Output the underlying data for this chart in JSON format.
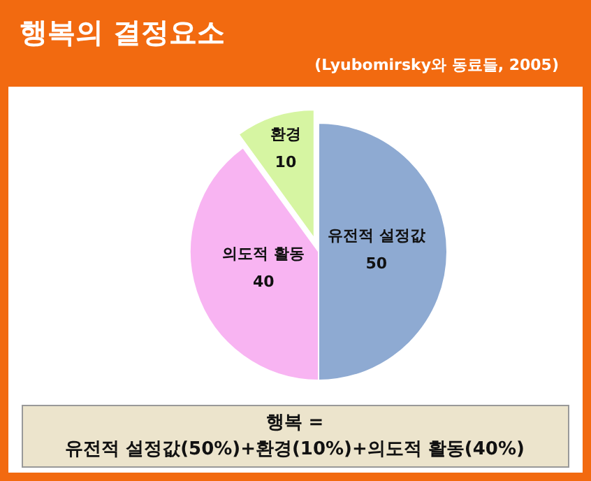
{
  "chart_data": {
    "type": "pie",
    "title": "행복의 결정요소",
    "subtitle": "(Lyubomirsky와 동료들, 2005)",
    "categories": [
      "유전적 설정값",
      "의도적 활동",
      "환경"
    ],
    "values": [
      50,
      40,
      10
    ],
    "colors": [
      "#8eaad2",
      "#f8b4f2",
      "#d6f5a2"
    ],
    "data_labels": true,
    "annotations": [
      "행복 =",
      "유전적 설정값(50%)+환경(10%)+의도적 활동(40%)"
    ]
  }
}
